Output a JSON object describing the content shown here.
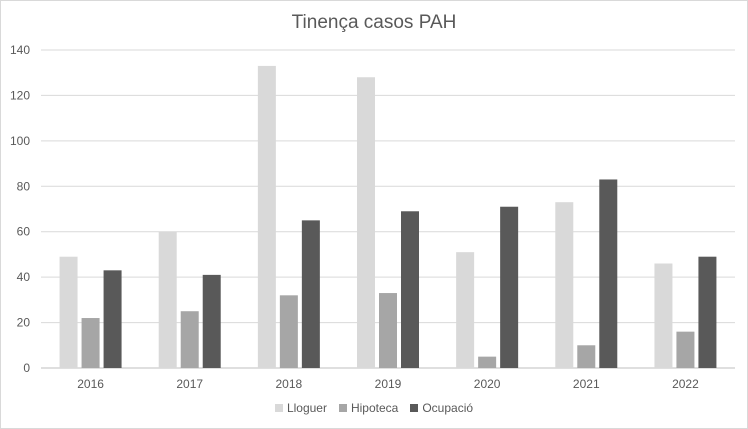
{
  "chart_data": {
    "type": "bar",
    "title": "Tinença casos PAH",
    "categories": [
      "2016",
      "2017",
      "2018",
      "2019",
      "2020",
      "2021",
      "2022"
    ],
    "series": [
      {
        "name": "Lloguer",
        "color": "#d9d9d9",
        "values": [
          49,
          60,
          133,
          128,
          51,
          73,
          46
        ]
      },
      {
        "name": "Hipoteca",
        "color": "#a6a6a6",
        "values": [
          22,
          25,
          32,
          33,
          5,
          10,
          16
        ]
      },
      {
        "name": "Ocupació",
        "color": "#595959",
        "values": [
          43,
          41,
          65,
          69,
          71,
          83,
          49
        ]
      }
    ],
    "y_ticks": [
      "0",
      "20",
      "40",
      "60",
      "80",
      "100",
      "120",
      "140"
    ],
    "ylim": [
      0,
      140
    ],
    "grid": true,
    "legend_position": "bottom"
  }
}
